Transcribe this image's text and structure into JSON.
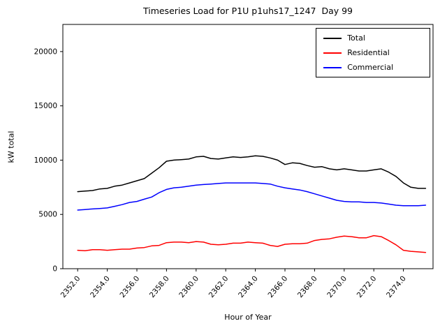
{
  "chart_data": {
    "type": "line",
    "title": "Timeseries Load for P1U p1uhs17_1247  Day 99",
    "xlabel": "Hour of Year",
    "ylabel": "kW total",
    "xlim": [
      2351,
      2376
    ],
    "ylim": [
      0,
      22500
    ],
    "grid": false,
    "legend_position": "upper right",
    "x_ticks": [
      2352,
      2354,
      2356,
      2358,
      2360,
      2362,
      2364,
      2366,
      2368,
      2370,
      2372,
      2374
    ],
    "x_tick_labels": [
      "2352.0",
      "2354.0",
      "2356.0",
      "2358.0",
      "2360.0",
      "2362.0",
      "2364.0",
      "2366.0",
      "2368.0",
      "2370.0",
      "2372.0",
      "2374.0"
    ],
    "y_ticks": [
      0,
      5000,
      10000,
      15000,
      20000
    ],
    "y_tick_labels": [
      "0",
      "5000",
      "10000",
      "15000",
      "20000"
    ],
    "x": [
      2352.0,
      2352.5,
      2353.0,
      2353.5,
      2354.0,
      2354.5,
      2355.0,
      2355.5,
      2356.0,
      2356.5,
      2357.0,
      2357.5,
      2358.0,
      2358.5,
      2359.0,
      2359.5,
      2360.0,
      2360.5,
      2361.0,
      2361.5,
      2362.0,
      2362.5,
      2363.0,
      2363.5,
      2364.0,
      2364.5,
      2365.0,
      2365.5,
      2366.0,
      2366.5,
      2367.0,
      2367.5,
      2368.0,
      2368.5,
      2369.0,
      2369.5,
      2370.0,
      2370.5,
      2371.0,
      2371.5,
      2372.0,
      2372.5,
      2373.0,
      2373.5,
      2374.0,
      2374.5,
      2375.0,
      2375.5
    ],
    "series": [
      {
        "name": "Total",
        "color": "#000000",
        "values": [
          7100,
          7150,
          7200,
          7350,
          7400,
          7600,
          7700,
          7900,
          8100,
          8300,
          8800,
          9300,
          9900,
          10000,
          10050,
          10100,
          10300,
          10350,
          10150,
          10100,
          10200,
          10300,
          10250,
          10300,
          10400,
          10350,
          10200,
          10000,
          9600,
          9750,
          9700,
          9500,
          9350,
          9400,
          9200,
          9100,
          9200,
          9100,
          9000,
          9000,
          9100,
          9200,
          8900,
          8500,
          7900,
          7500,
          7400,
          7400
        ]
      },
      {
        "name": "Residential",
        "color": "#ff0000",
        "values": [
          1700,
          1650,
          1750,
          1750,
          1700,
          1750,
          1800,
          1800,
          1900,
          1950,
          2100,
          2150,
          2400,
          2450,
          2450,
          2400,
          2500,
          2450,
          2250,
          2200,
          2250,
          2350,
          2350,
          2450,
          2400,
          2350,
          2150,
          2050,
          2250,
          2300,
          2300,
          2350,
          2600,
          2700,
          2750,
          2900,
          3000,
          2950,
          2850,
          2850,
          3050,
          2950,
          2600,
          2200,
          1700,
          1600,
          1550,
          1500
        ]
      },
      {
        "name": "Commercial",
        "color": "#0000ff",
        "values": [
          5400,
          5450,
          5500,
          5550,
          5600,
          5750,
          5900,
          6100,
          6200,
          6400,
          6600,
          7000,
          7300,
          7450,
          7500,
          7600,
          7700,
          7750,
          7800,
          7850,
          7900,
          7900,
          7900,
          7900,
          7900,
          7850,
          7800,
          7600,
          7450,
          7350,
          7250,
          7100,
          6900,
          6700,
          6500,
          6300,
          6200,
          6150,
          6150,
          6100,
          6100,
          6050,
          5950,
          5850,
          5800,
          5800,
          5800,
          5850
        ]
      }
    ]
  }
}
